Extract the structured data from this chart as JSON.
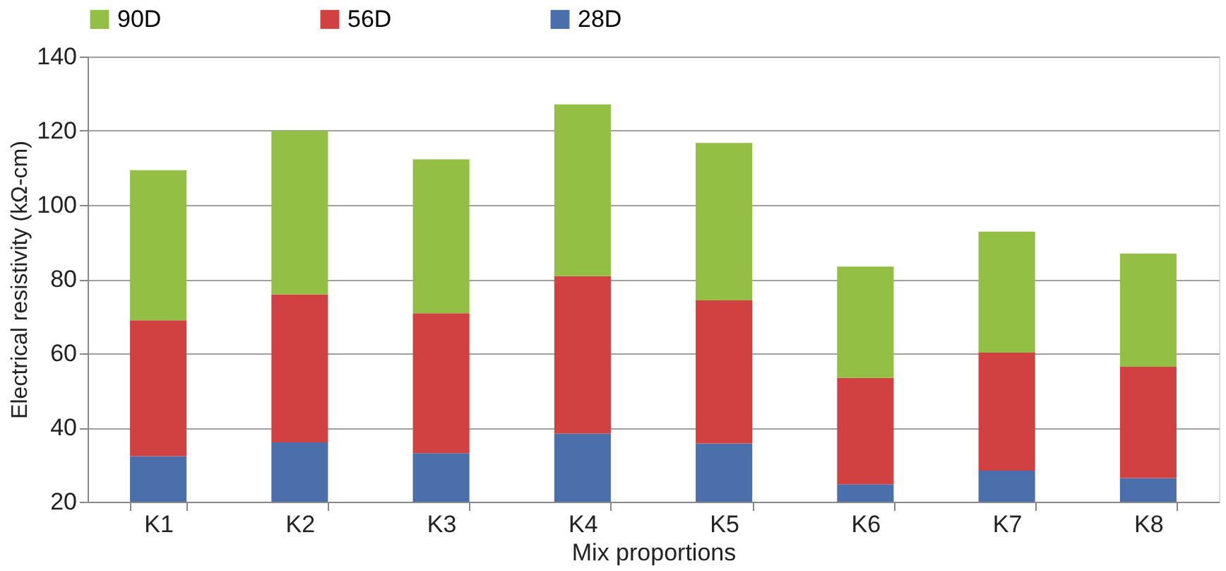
{
  "chart_data": {
    "type": "bar",
    "stacked": true,
    "xlabel": "Mix proportions",
    "ylabel": "Electrical resistivity (kΩ-cm)",
    "categories": [
      "K1",
      "K2",
      "K3",
      "K4",
      "K5",
      "K6",
      "K7",
      "K8"
    ],
    "series": [
      {
        "name": "28D",
        "color": "#4a6faa",
        "values": [
          32.3,
          36.0,
          33.1,
          38.4,
          35.7,
          24.7,
          28.4,
          26.4
        ]
      },
      {
        "name": "56D",
        "color": "#d14141",
        "values": [
          36.6,
          39.9,
          37.7,
          42.4,
          38.6,
          28.7,
          31.8,
          30.0
        ]
      },
      {
        "name": "90D",
        "color": "#92bf44",
        "values": [
          40.5,
          44.1,
          41.5,
          46.3,
          42.4,
          30.0,
          32.6,
          30.5
        ]
      }
    ],
    "ylim": [
      20,
      140
    ],
    "yticks": [
      20,
      40,
      60,
      80,
      100,
      120,
      140
    ],
    "grid": "y",
    "legend": "top"
  }
}
